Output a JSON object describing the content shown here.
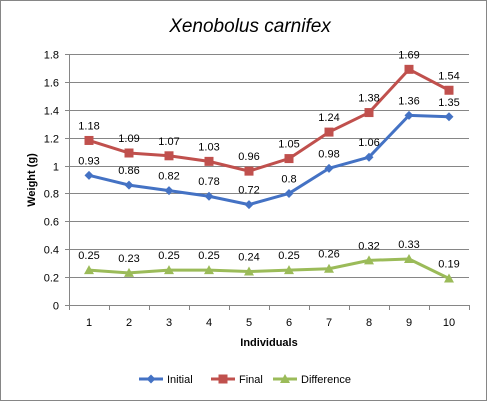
{
  "chart_data": {
    "type": "line",
    "title": "Xenobolus carnifex",
    "xlabel": "Individuals",
    "ylabel": "Weight (g)",
    "ylim": [
      0,
      1.8
    ],
    "yticks": [
      "0",
      "0.2",
      "0.4",
      "0.6",
      "0.8",
      "1",
      "1.2",
      "1.4",
      "1.6",
      "1.8"
    ],
    "categories": [
      "1",
      "2",
      "3",
      "4",
      "5",
      "6",
      "7",
      "8",
      "9",
      "10"
    ],
    "grid": "horizontal",
    "legend_position": "bottom",
    "series": [
      {
        "name": "Initial",
        "color": "#4472C4",
        "marker": "diamond",
        "values": [
          0.93,
          0.86,
          0.82,
          0.78,
          0.72,
          0.8,
          0.98,
          1.06,
          1.36,
          1.35
        ],
        "labels": [
          "0.93",
          "0.86",
          "0.82",
          "0.78",
          "0.72",
          "0.8",
          "0.98",
          "1.06",
          "1.36",
          "1.35"
        ]
      },
      {
        "name": "Final",
        "color": "#C0504D",
        "marker": "square",
        "values": [
          1.18,
          1.09,
          1.07,
          1.03,
          0.96,
          1.05,
          1.24,
          1.38,
          1.69,
          1.54
        ],
        "labels": [
          "1.18",
          "1.09",
          "1.07",
          "1.03",
          "0.96",
          "1.05",
          "1.24",
          "1.38",
          "1.69",
          "1.54"
        ]
      },
      {
        "name": "Difference",
        "color": "#9BBB59",
        "marker": "triangle",
        "values": [
          0.25,
          0.23,
          0.25,
          0.25,
          0.24,
          0.25,
          0.26,
          0.32,
          0.33,
          0.19
        ],
        "labels": [
          "0.25",
          "0.23",
          "0.25",
          "0.25",
          "0.24",
          "0.25",
          "0.26",
          "0.32",
          "0.33",
          "0.19"
        ]
      }
    ]
  }
}
